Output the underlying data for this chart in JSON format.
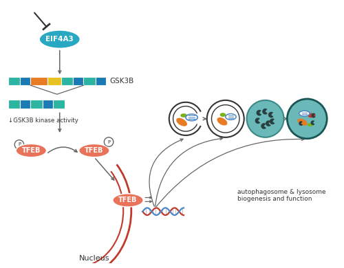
{
  "bg_color": "#ffffff",
  "eif4a3_color": "#29a8c4",
  "eif4a3_text": "EIF4A3",
  "eif4a3_text_color": "#ffffff",
  "tfeb_color": "#e8725a",
  "tfeb_text_color": "#ffffff",
  "tfeb_text": "TFEB",
  "gsk3b_text": "GSK3B",
  "gsk3b_kinase_text": "↓GSK3B kinase activity",
  "nucleus_text": "Nucleus",
  "autophagy_text": "autophagosome & lysosome\nbiogenesis and function",
  "exon_colors": [
    "#2db5a3",
    "#1a7ab5",
    "#e87c25",
    "#e8c220",
    "#2db5a3",
    "#1a7ab5",
    "#2db5a3",
    "#1a7ab5"
  ],
  "exon_colors_skip": [
    "#2db5a3",
    "#1a7ab5",
    "#2db5a3",
    "#1a7ab5",
    "#2db5a3"
  ],
  "teal_cell": "#6ab8b8",
  "orange_organelle": "#e87c25",
  "red_organelle": "#c0392b",
  "green_organelle": "#7ab317",
  "blue_mito": "#4a86c8",
  "arrow_color": "#666666",
  "red_curve_color": "#c0392b",
  "dna_blue": "#4a86c8",
  "dna_red": "#c0392b",
  "dark_spot": "#2a4040"
}
